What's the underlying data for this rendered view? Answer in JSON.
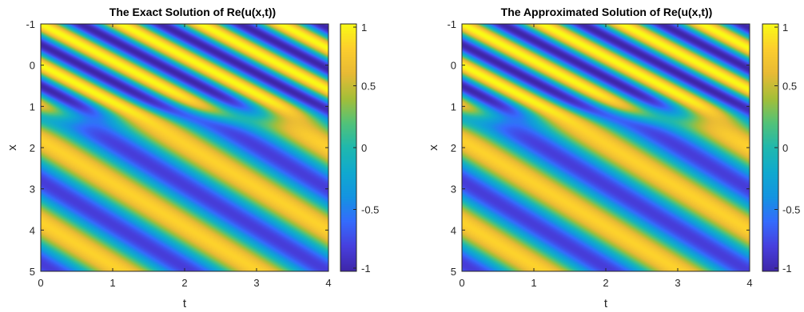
{
  "chart_data": [
    {
      "type": "heatmap",
      "title": "The Exact Solution of Re(u(x,t))",
      "xlabel": "t",
      "ylabel": "x",
      "xlim": [
        0,
        4
      ],
      "ylim": [
        -1,
        5
      ],
      "y_reversed": true,
      "xticks": [
        "0",
        "1",
        "2",
        "3",
        "4"
      ],
      "yticks": [
        "-1",
        "0",
        "1",
        "2",
        "3",
        "4",
        "5"
      ],
      "colorbar": {
        "range": [
          -1,
          1
        ],
        "ticks": [
          "1",
          "0.5",
          "0",
          "-0.5",
          "-1"
        ],
        "colormap": "parula"
      },
      "field": {
        "description_of_pattern": "diagonal traveling waves; high frequency for x < 1.2, low frequency for x > 1.2",
        "upper_region": {
          "x_range": [
            -1,
            1.2
          ],
          "wave_period_along_x": 1.0,
          "phase_velocity": 0.9
        },
        "lower_region": {
          "x_range": [
            1.2,
            5
          ],
          "wave_period_along_x": 2.0,
          "phase_velocity": 1.05
        }
      }
    },
    {
      "type": "heatmap",
      "title": "The Approximated Solution of Re(u(x,t))",
      "xlabel": "t",
      "ylabel": "x",
      "xlim": [
        0,
        4
      ],
      "ylim": [
        -1,
        5
      ],
      "y_reversed": true,
      "xticks": [
        "0",
        "1",
        "2",
        "3",
        "4"
      ],
      "yticks": [
        "-1",
        "0",
        "1",
        "2",
        "3",
        "4",
        "5"
      ],
      "colorbar": {
        "range": [
          -1,
          1
        ],
        "ticks": [
          "1",
          "0.5",
          "0",
          "-0.5",
          "-1"
        ],
        "colormap": "parula"
      },
      "field": {
        "description_of_pattern": "diagonal traveling waves; high frequency for x < 1.2, low frequency for x > 1.2",
        "upper_region": {
          "x_range": [
            -1,
            1.2
          ],
          "wave_period_along_x": 1.0,
          "phase_velocity": 0.9
        },
        "lower_region": {
          "x_range": [
            1.2,
            5
          ],
          "wave_period_along_x": 2.0,
          "phase_velocity": 1.05
        }
      }
    }
  ],
  "colors": {
    "parula_low": "#3e26a8",
    "parula_mid": "#1fb0ca",
    "parula_high": "#f9fb15",
    "axis": "#262626"
  }
}
